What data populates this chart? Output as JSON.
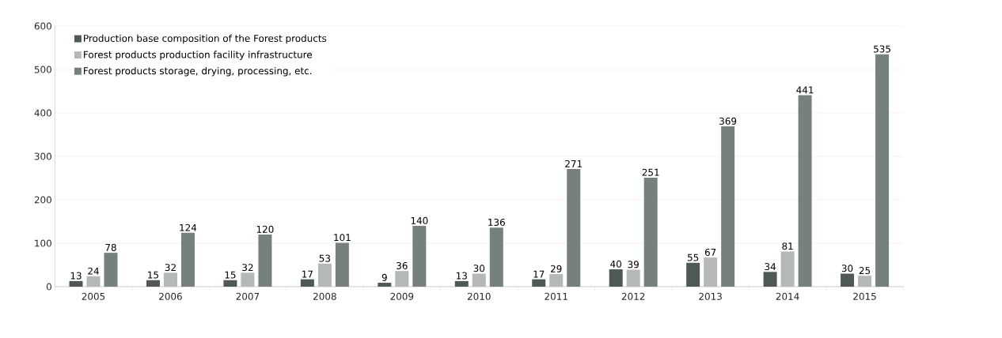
{
  "chart_data": {
    "type": "bar",
    "categories": [
      "2005",
      "2006",
      "2007",
      "2008",
      "2009",
      "2010",
      "2011",
      "2012",
      "2013",
      "2014",
      "2015"
    ],
    "series": [
      {
        "name": "Production base composition of the Forest products",
        "color": "#4f5a57",
        "values": [
          13,
          15,
          15,
          17,
          9,
          13,
          17,
          40,
          55,
          34,
          30
        ]
      },
      {
        "name": "Forest products production facility infrastructure",
        "color": "#b4b8b6",
        "values": [
          24,
          32,
          32,
          53,
          36,
          30,
          29,
          39,
          67,
          81,
          25
        ]
      },
      {
        "name": "Forest products storage, drying, processing, etc.",
        "color": "#76817d",
        "values": [
          78,
          124,
          120,
          101,
          140,
          136,
          271,
          251,
          369,
          441,
          535
        ]
      }
    ],
    "ylim": [
      0,
      600
    ],
    "yticks": [
      0,
      100,
      200,
      300,
      400,
      500,
      600
    ],
    "grid": "y",
    "legend": "top left",
    "data_labels": true
  }
}
